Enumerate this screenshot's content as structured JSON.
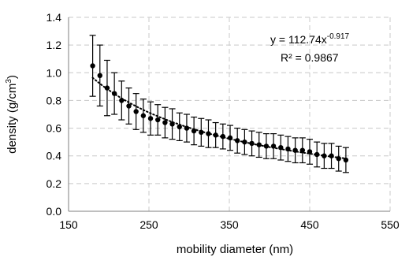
{
  "chart_data": {
    "type": "scatter",
    "title": "",
    "xlabel": "mobility diameter (nm)",
    "ylabel_main": "density (g/cm",
    "ylabel_sup": "3",
    "ylabel_tail": ")",
    "xlim": [
      150,
      550
    ],
    "ylim": [
      0.0,
      1.4
    ],
    "xticks": [
      "150",
      "250",
      "350",
      "450",
      "550"
    ],
    "yticks": [
      "0.0",
      "0.2",
      "0.4",
      "0.6",
      "0.8",
      "1.0",
      "1.2",
      "1.4"
    ],
    "grid": true,
    "legend": "none",
    "series": [
      {
        "marker": "circle",
        "color": "#000000",
        "x": [
          180,
          189,
          198,
          207,
          216,
          225,
          234,
          243,
          252,
          261,
          270,
          279,
          288,
          297,
          306,
          315,
          324,
          333,
          342,
          351,
          360,
          369,
          378,
          387,
          396,
          405,
          414,
          423,
          432,
          441,
          450,
          459,
          468,
          477,
          486,
          495
        ],
        "y": [
          1.05,
          0.98,
          0.89,
          0.85,
          0.8,
          0.76,
          0.72,
          0.69,
          0.67,
          0.66,
          0.64,
          0.63,
          0.61,
          0.6,
          0.58,
          0.57,
          0.56,
          0.55,
          0.54,
          0.53,
          0.51,
          0.5,
          0.49,
          0.48,
          0.47,
          0.47,
          0.46,
          0.45,
          0.44,
          0.44,
          0.43,
          0.41,
          0.4,
          0.4,
          0.38,
          0.37
        ],
        "error": [
          0.22,
          0.22,
          0.2,
          0.15,
          0.14,
          0.13,
          0.13,
          0.12,
          0.12,
          0.11,
          0.11,
          0.11,
          0.1,
          0.1,
          0.1,
          0.1,
          0.1,
          0.09,
          0.09,
          0.09,
          0.09,
          0.09,
          0.09,
          0.09,
          0.09,
          0.09,
          0.09,
          0.09,
          0.09,
          0.09,
          0.09,
          0.09,
          0.09,
          0.09,
          0.09,
          0.09
        ]
      }
    ],
    "trendline": {
      "style": "dotted",
      "a": 112.74,
      "b": -0.917,
      "x_range": [
        180,
        495
      ]
    },
    "annotation": {
      "equation_main": "y = 112.74x",
      "equation_exp": "-0.917",
      "r2": "R² = 0.9867"
    }
  }
}
